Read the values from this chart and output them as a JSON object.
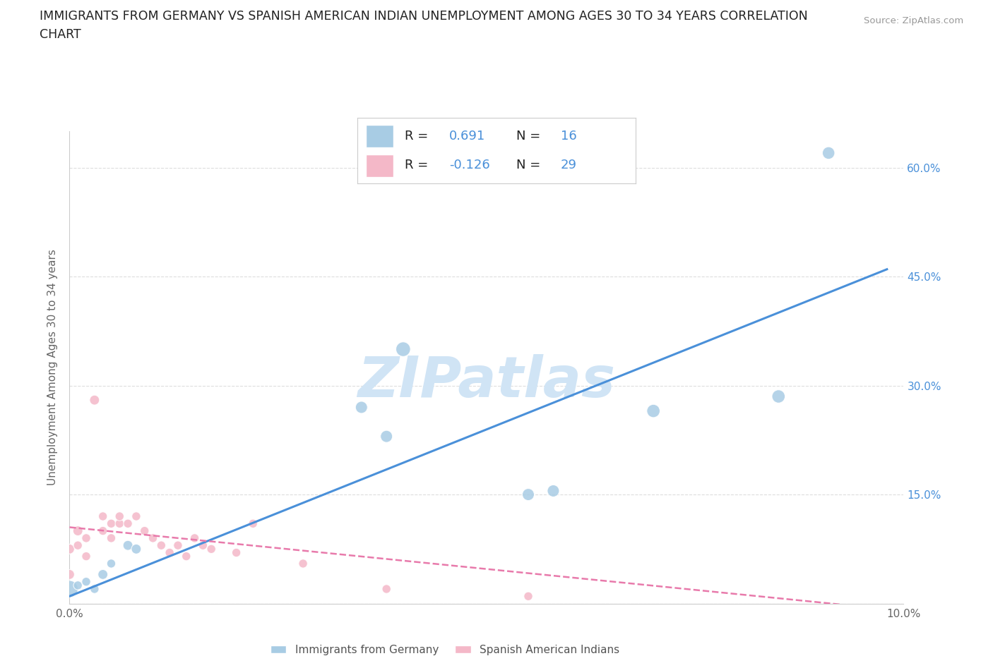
{
  "title_line1": "IMMIGRANTS FROM GERMANY VS SPANISH AMERICAN INDIAN UNEMPLOYMENT AMONG AGES 30 TO 34 YEARS CORRELATION",
  "title_line2": "CHART",
  "source": "Source: ZipAtlas.com",
  "ylabel": "Unemployment Among Ages 30 to 34 years",
  "xlabel_blue": "Immigrants from Germany",
  "xlabel_pink": "Spanish American Indians",
  "xlim": [
    0.0,
    0.1
  ],
  "ylim": [
    0.0,
    0.65
  ],
  "x_ticks": [
    0.0,
    0.02,
    0.04,
    0.06,
    0.08,
    0.1
  ],
  "x_tick_labels": [
    "0.0%",
    "",
    "",
    "",
    "",
    "10.0%"
  ],
  "y_ticks": [
    0.0,
    0.15,
    0.3,
    0.45,
    0.6
  ],
  "y_tick_labels_right": [
    "",
    "15.0%",
    "30.0%",
    "45.0%",
    "60.0%"
  ],
  "R_blue": 0.691,
  "N_blue": 16,
  "R_pink": -0.126,
  "N_pink": 29,
  "blue_color": "#a8cce4",
  "pink_color": "#f4b8c8",
  "blue_line_color": "#4a90d9",
  "pink_line_color": "#e87aab",
  "watermark_color": "#d0e4f5",
  "grid_color": "#dddddd",
  "blue_scatter_x": [
    0.0,
    0.001,
    0.002,
    0.003,
    0.004,
    0.005,
    0.007,
    0.008,
    0.035,
    0.038,
    0.04,
    0.055,
    0.058,
    0.07,
    0.085,
    0.091
  ],
  "blue_scatter_y": [
    0.02,
    0.025,
    0.03,
    0.02,
    0.04,
    0.055,
    0.08,
    0.075,
    0.27,
    0.23,
    0.35,
    0.15,
    0.155,
    0.265,
    0.285,
    0.62
  ],
  "blue_scatter_sizes": [
    300,
    80,
    80,
    80,
    100,
    80,
    100,
    100,
    150,
    150,
    220,
    150,
    150,
    180,
    180,
    160
  ],
  "pink_scatter_x": [
    0.0,
    0.0,
    0.001,
    0.001,
    0.002,
    0.002,
    0.003,
    0.004,
    0.004,
    0.005,
    0.005,
    0.006,
    0.006,
    0.007,
    0.008,
    0.009,
    0.01,
    0.011,
    0.012,
    0.013,
    0.014,
    0.015,
    0.016,
    0.017,
    0.02,
    0.022,
    0.028,
    0.038,
    0.055
  ],
  "pink_scatter_y": [
    0.04,
    0.075,
    0.1,
    0.08,
    0.09,
    0.065,
    0.28,
    0.12,
    0.1,
    0.09,
    0.11,
    0.11,
    0.12,
    0.11,
    0.12,
    0.1,
    0.09,
    0.08,
    0.07,
    0.08,
    0.065,
    0.09,
    0.08,
    0.075,
    0.07,
    0.11,
    0.055,
    0.02,
    0.01
  ],
  "pink_scatter_sizes": [
    100,
    100,
    100,
    80,
    80,
    80,
    100,
    80,
    80,
    80,
    80,
    80,
    80,
    80,
    80,
    80,
    80,
    80,
    80,
    80,
    80,
    80,
    80,
    80,
    80,
    80,
    80,
    80,
    80
  ],
  "blue_trend_x": [
    0.0,
    0.098
  ],
  "blue_trend_y": [
    0.01,
    0.46
  ],
  "pink_trend_x": [
    0.0,
    0.1
  ],
  "pink_trend_y": [
    0.105,
    -0.01
  ]
}
